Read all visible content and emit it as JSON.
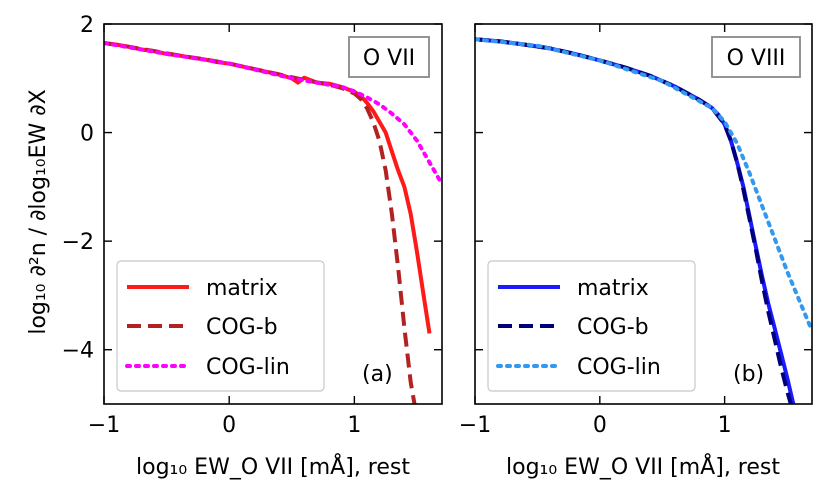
{
  "chart_data": [
    {
      "type": "line",
      "panel_label": "(a)",
      "title": "O VII",
      "xlabel": "log₁₀ EW_O VII [mÅ], rest",
      "ylabel": "log₁₀ ∂²n / ∂log₁₀EW ∂X",
      "xlim": [
        -1.0,
        1.7
      ],
      "ylim": [
        -5.0,
        2.0
      ],
      "xticks": [
        -1,
        0,
        1
      ],
      "yticks": [
        -4,
        -2,
        0,
        2
      ],
      "xtick_labels": [
        "−1",
        "0",
        "1"
      ],
      "ytick_labels": [
        "−4",
        "−2",
        "0",
        "2"
      ],
      "legend_position": "lower-left",
      "series": [
        {
          "name": "matrix",
          "color": "#ff1a1a",
          "style": "solid",
          "x": [
            -1.0,
            -0.9,
            -0.8,
            -0.7,
            -0.6,
            -0.5,
            -0.4,
            -0.3,
            -0.2,
            -0.1,
            0.0,
            0.1,
            0.2,
            0.3,
            0.4,
            0.5,
            0.55,
            0.6,
            0.7,
            0.8,
            0.9,
            1.0,
            1.05,
            1.1,
            1.15,
            1.2,
            1.25,
            1.3,
            1.35,
            1.4,
            1.45,
            1.5,
            1.55,
            1.6
          ],
          "y": [
            1.65,
            1.62,
            1.58,
            1.53,
            1.5,
            1.45,
            1.42,
            1.38,
            1.35,
            1.3,
            1.27,
            1.22,
            1.17,
            1.12,
            1.07,
            1.0,
            0.92,
            1.01,
            0.92,
            0.9,
            0.84,
            0.75,
            0.68,
            0.55,
            0.4,
            0.2,
            0.0,
            -0.35,
            -0.7,
            -1.0,
            -1.5,
            -2.2,
            -2.95,
            -3.7
          ]
        },
        {
          "name": "COG-b",
          "color": "#b22222",
          "style": "dashed",
          "x": [
            -1.0,
            -0.8,
            -0.6,
            -0.4,
            -0.2,
            0.0,
            0.2,
            0.4,
            0.6,
            0.8,
            0.9,
            1.0,
            1.05,
            1.1,
            1.15,
            1.2,
            1.25,
            1.3,
            1.35,
            1.4,
            1.45,
            1.48
          ],
          "y": [
            1.65,
            1.58,
            1.5,
            1.42,
            1.35,
            1.27,
            1.17,
            1.07,
            0.97,
            0.88,
            0.82,
            0.72,
            0.62,
            0.45,
            0.2,
            -0.15,
            -0.7,
            -1.5,
            -2.5,
            -3.6,
            -4.6,
            -5.0
          ]
        },
        {
          "name": "COG-lin",
          "color": "#ff00ff",
          "style": "dotted",
          "x": [
            -1.0,
            -0.5,
            0.0,
            0.5,
            0.9,
            1.0,
            1.1,
            1.2,
            1.3,
            1.4,
            1.5,
            1.6,
            1.7
          ],
          "y": [
            1.65,
            1.45,
            1.27,
            1.0,
            0.84,
            0.76,
            0.65,
            0.52,
            0.35,
            0.15,
            -0.15,
            -0.55,
            -0.95
          ]
        }
      ]
    },
    {
      "type": "line",
      "panel_label": "(b)",
      "title": "O VIII",
      "xlabel": "log₁₀ EW_O VII [mÅ], rest",
      "ylabel": "",
      "xlim": [
        -1.0,
        1.7
      ],
      "ylim": [
        -5.0,
        2.0
      ],
      "xticks": [
        -1,
        0,
        1
      ],
      "yticks": [
        -4,
        -2,
        0,
        2
      ],
      "xtick_labels": [
        "−1",
        "0",
        "1"
      ],
      "ytick_labels": [],
      "legend_position": "lower-left",
      "series": [
        {
          "name": "matrix",
          "color": "#1a1aff",
          "style": "solid",
          "x": [
            -1.0,
            -0.8,
            -0.6,
            -0.4,
            -0.2,
            0.0,
            0.2,
            0.4,
            0.6,
            0.8,
            0.9,
            0.95,
            1.0,
            1.05,
            1.1,
            1.15,
            1.2,
            1.25,
            1.3,
            1.35,
            1.4,
            1.45,
            1.5,
            1.55
          ],
          "y": [
            1.72,
            1.68,
            1.62,
            1.55,
            1.45,
            1.33,
            1.2,
            1.05,
            0.85,
            0.6,
            0.45,
            0.33,
            0.15,
            -0.15,
            -0.55,
            -1.0,
            -1.55,
            -2.1,
            -2.65,
            -3.15,
            -3.6,
            -4.05,
            -4.5,
            -5.0
          ]
        },
        {
          "name": "COG-b",
          "color": "#00007a",
          "style": "dashed",
          "x": [
            -1.0,
            -0.8,
            -0.6,
            -0.4,
            -0.2,
            0.0,
            0.2,
            0.4,
            0.6,
            0.8,
            0.9,
            1.0,
            1.05,
            1.1,
            1.15,
            1.2,
            1.25,
            1.3,
            1.35,
            1.4,
            1.45,
            1.5,
            1.53
          ],
          "y": [
            1.72,
            1.68,
            1.62,
            1.55,
            1.45,
            1.33,
            1.2,
            1.05,
            0.85,
            0.6,
            0.45,
            0.15,
            -0.15,
            -0.55,
            -1.05,
            -1.6,
            -2.15,
            -2.75,
            -3.3,
            -3.8,
            -4.3,
            -4.75,
            -5.0
          ]
        },
        {
          "name": "COG-lin",
          "color": "#3399ee",
          "style": "dotted",
          "x": [
            -1.0,
            -0.5,
            0.0,
            0.5,
            0.9,
            1.0,
            1.1,
            1.2,
            1.3,
            1.4,
            1.5,
            1.6,
            1.7
          ],
          "y": [
            1.72,
            1.6,
            1.33,
            0.95,
            0.45,
            0.2,
            -0.2,
            -0.75,
            -1.35,
            -1.95,
            -2.55,
            -3.1,
            -3.65
          ]
        }
      ]
    }
  ]
}
